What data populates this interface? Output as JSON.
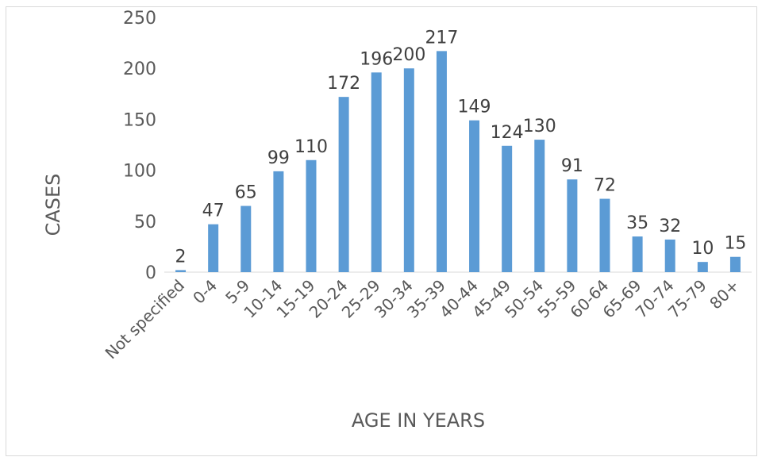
{
  "chart_data": {
    "type": "bar",
    "title": "",
    "xlabel": "AGE IN YEARS",
    "ylabel": "CASES",
    "ylim": [
      0,
      250
    ],
    "yticks": [
      0,
      50,
      100,
      150,
      200,
      250
    ],
    "grid": false,
    "legend": "none",
    "bar_color": "#5b9bd5",
    "categories": [
      "Not specified",
      "0-4",
      "5-9",
      "10-14",
      "15-19",
      "20-24",
      "25-29",
      "30-34",
      "35-39",
      "40-44",
      "45-49",
      "50-54",
      "55-59",
      "60-64",
      "65-69",
      "70-74",
      "75-79",
      "80+"
    ],
    "values": [
      2,
      47,
      65,
      99,
      110,
      172,
      196,
      200,
      217,
      149,
      124,
      130,
      91,
      72,
      35,
      32,
      10,
      15
    ]
  }
}
